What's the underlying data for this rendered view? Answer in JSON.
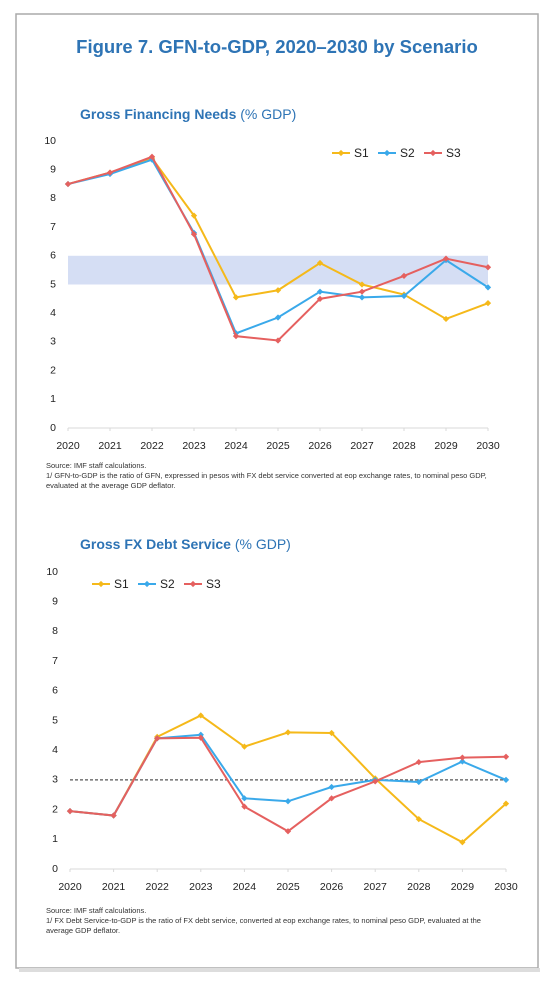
{
  "figure_title": "Figure 7. GFN-to-GDP, 2020–2030 by Scenario",
  "chart_data": [
    {
      "type": "line",
      "title": "Gross Financing Needs",
      "subtitle": "(% GDP)",
      "x": [
        2020,
        2021,
        2022,
        2023,
        2024,
        2025,
        2026,
        2027,
        2028,
        2029,
        2030
      ],
      "xlim": [
        2020,
        2030
      ],
      "xticks": [
        2020,
        2021,
        2022,
        2023,
        2024,
        2025,
        2026,
        2027,
        2028,
        2029,
        2030
      ],
      "ylim": [
        0,
        10
      ],
      "yticks": [
        0,
        1,
        2,
        3,
        4,
        5,
        6,
        7,
        8,
        9,
        10
      ],
      "legend": "upper right",
      "shaded_range": [
        5,
        6
      ],
      "shaded_color": "#d5def4",
      "series": [
        {
          "name": "S1",
          "color": "#f5b91a",
          "values": [
            8.5,
            8.9,
            9.4,
            7.4,
            4.55,
            4.8,
            5.75,
            5.0,
            4.65,
            3.8,
            4.35
          ]
        },
        {
          "name": "S2",
          "color": "#3aa9ea",
          "values": [
            8.5,
            8.85,
            9.35,
            6.8,
            3.3,
            3.85,
            4.75,
            4.55,
            4.6,
            5.85,
            4.9
          ]
        },
        {
          "name": "S3",
          "color": "#e5605f",
          "values": [
            8.5,
            8.9,
            9.45,
            6.75,
            3.2,
            3.05,
            4.5,
            4.75,
            5.3,
            5.9,
            5.6
          ]
        }
      ],
      "notes": [
        "Source: IMF staff calculations.",
        "1/ GFN-to-GDP is the ratio of GFN, expressed in pesos with FX debt service converted at eop exchange rates, to nominal peso GDP, evaluated at the average GDP deflator."
      ]
    },
    {
      "type": "line",
      "title": "Gross FX Debt Service",
      "subtitle": "(% GDP)",
      "x": [
        2020,
        2021,
        2022,
        2023,
        2024,
        2025,
        2026,
        2027,
        2028,
        2029,
        2030
      ],
      "xlim": [
        2020,
        2030
      ],
      "xticks": [
        2020,
        2021,
        2022,
        2023,
        2024,
        2025,
        2026,
        2027,
        2028,
        2029,
        2030
      ],
      "ylim": [
        0,
        10
      ],
      "yticks": [
        0,
        1,
        2,
        3,
        4,
        5,
        6,
        7,
        8,
        9,
        10
      ],
      "legend": "upper left",
      "reference_line": 3,
      "series": [
        {
          "name": "S1",
          "color": "#f5b91a",
          "values": [
            1.95,
            1.8,
            4.45,
            5.17,
            4.12,
            4.6,
            4.58,
            3.05,
            1.68,
            0.9,
            2.2
          ]
        },
        {
          "name": "S2",
          "color": "#3aa9ea",
          "values": [
            1.95,
            1.8,
            4.4,
            4.52,
            2.38,
            2.28,
            2.76,
            3.0,
            2.93,
            3.62,
            3.0
          ]
        },
        {
          "name": "S3",
          "color": "#e5605f",
          "values": [
            1.95,
            1.8,
            4.4,
            4.42,
            2.1,
            1.27,
            2.38,
            2.95,
            3.6,
            3.75,
            3.78
          ]
        }
      ],
      "notes": [
        "Source: IMF staff calculations.",
        "1/ FX Debt Service-to-GDP is the ratio of FX debt service, converted at eop exchange rates, to nominal peso GDP, evaluated at the average GDP deflator."
      ]
    }
  ]
}
